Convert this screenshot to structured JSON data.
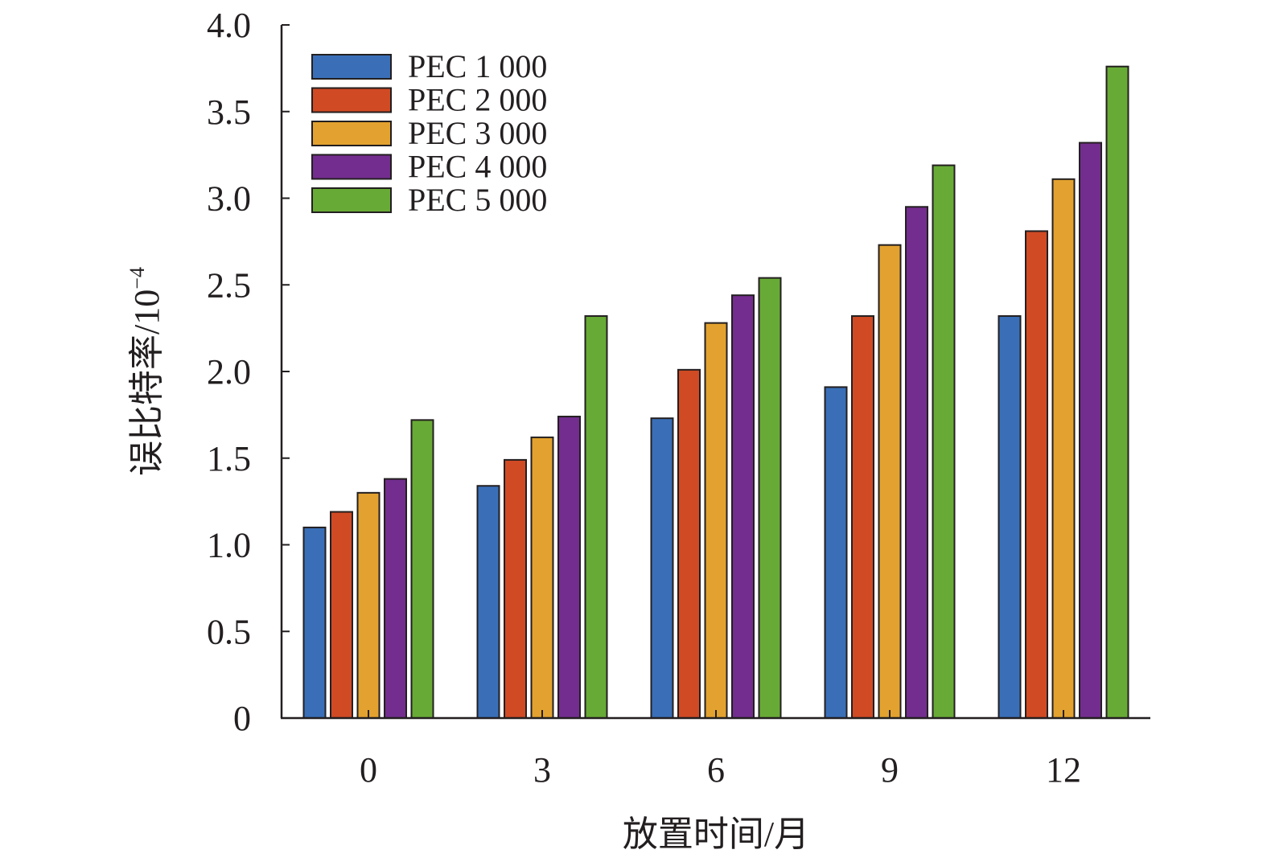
{
  "chart_data": {
    "type": "bar",
    "title": "",
    "xlabel": "放置时间/月",
    "ylabel_main": "误比特率/10",
    "ylabel_exp": "−4",
    "categories": [
      "0",
      "3",
      "6",
      "9",
      "12"
    ],
    "ylim": [
      0,
      4.0
    ],
    "yticks": [
      0,
      0.5,
      1.0,
      1.5,
      2.0,
      2.5,
      3.0,
      3.5,
      4.0
    ],
    "ytick_labels": [
      "0",
      "0.5",
      "1.0",
      "1.5",
      "2.0",
      "2.5",
      "3.0",
      "3.5",
      "4.0"
    ],
    "grid": false,
    "legend_position": "top-left",
    "series": [
      {
        "name": "PEC 1 000",
        "color": "#3a6fb8",
        "values": [
          1.1,
          1.34,
          1.73,
          1.91,
          2.32
        ]
      },
      {
        "name": "PEC 2 000",
        "color": "#d04a24",
        "values": [
          1.19,
          1.49,
          2.01,
          2.32,
          2.81
        ]
      },
      {
        "name": "PEC 3 000",
        "color": "#e3a22f",
        "values": [
          1.3,
          1.62,
          2.28,
          2.73,
          3.11
        ]
      },
      {
        "name": "PEC 4 000",
        "color": "#732d8e",
        "values": [
          1.38,
          1.74,
          2.44,
          2.95,
          3.32
        ]
      },
      {
        "name": "PEC 5 000",
        "color": "#68aa36",
        "values": [
          1.72,
          2.32,
          2.54,
          3.19,
          3.76
        ]
      }
    ]
  }
}
